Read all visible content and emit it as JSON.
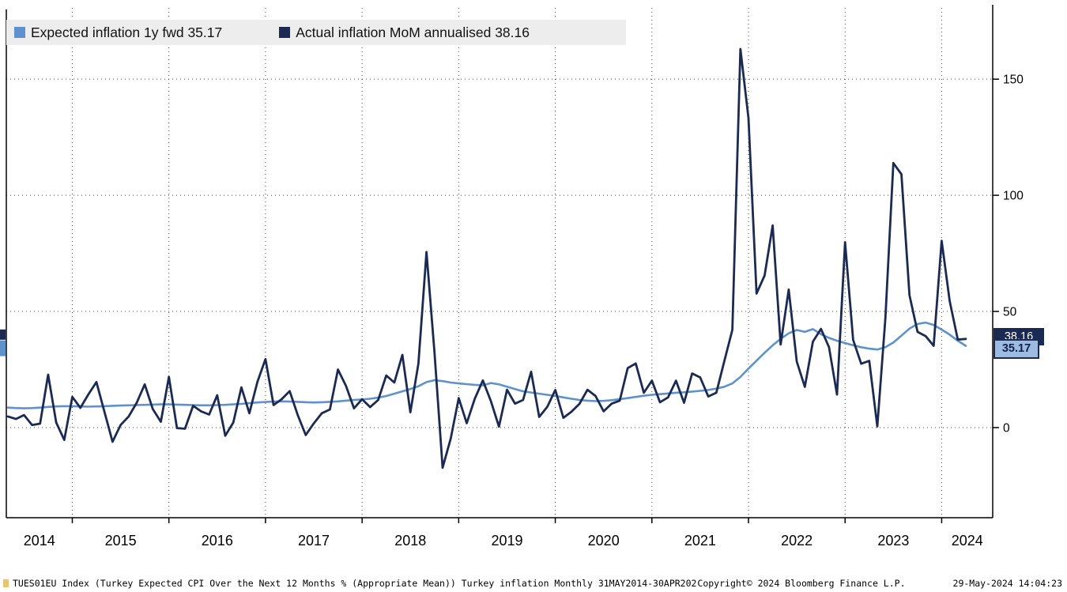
{
  "badges": {
    "actual_value": "38.16",
    "expected_value": "35.17"
  },
  "footer": {
    "left": "TUES01EU Index (Turkey Expected CPI Over the Next 12 Months % (Appropriate Mean)) Turkey inflation  Monthly 31MAY2014-30APR2024",
    "copyright": "Copyright© 2024 Bloomberg Finance L.P.",
    "timestamp": "29-May-2024 14:04:23"
  },
  "chart_data": {
    "type": "line",
    "frequency": "monthly",
    "x_start": "2014-05",
    "x_end": "2024-04",
    "year_labels": [
      "2014",
      "2015",
      "2016",
      "2017",
      "2018",
      "2019",
      "2020",
      "2021",
      "2022",
      "2023",
      "2024"
    ],
    "y_ticks": [
      0,
      50,
      100,
      150
    ],
    "ylim": [
      -38.8,
      180
    ],
    "grid": "dashed",
    "legend_position": "top-left",
    "series": [
      {
        "name": "Expected inflation 1y fwd",
        "legend_label": "Expected inflation 1y fwd 35.17",
        "color": "#5f92cc",
        "last_value": 35.17,
        "values": [
          8.6,
          8.4,
          8.3,
          8.4,
          8.6,
          8.9,
          9.1,
          9.2,
          9.2,
          9.1,
          9.0,
          9.1,
          9.2,
          9.4,
          9.5,
          9.6,
          9.7,
          9.8,
          9.9,
          10.0,
          10.0,
          9.9,
          9.8,
          9.7,
          9.6,
          9.6,
          9.7,
          9.8,
          10.0,
          10.2,
          10.5,
          10.8,
          11.0,
          11.2,
          11.3,
          11.2,
          11.1,
          10.9,
          10.8,
          10.9,
          11.1,
          11.3,
          11.6,
          11.9,
          12.1,
          12.4,
          12.9,
          13.6,
          14.6,
          15.6,
          16.6,
          17.8,
          19.6,
          20.4,
          20.0,
          19.4,
          19.0,
          18.7,
          18.4,
          18.2,
          19.2,
          18.6,
          17.6,
          16.6,
          15.6,
          15.1,
          14.6,
          14.1,
          13.6,
          13.0,
          12.4,
          11.9,
          11.6,
          11.4,
          11.5,
          11.8,
          12.2,
          12.7,
          13.2,
          13.7,
          14.1,
          14.4,
          14.7,
          15.0,
          15.2,
          15.5,
          15.8,
          16.2,
          16.8,
          17.6,
          19.0,
          21.8,
          25.4,
          28.8,
          32.2,
          35.4,
          38.2,
          40.6,
          42.0,
          41.2,
          42.4,
          40.2,
          38.6,
          37.4,
          36.4,
          35.4,
          34.6,
          34.0,
          33.6,
          34.6,
          36.6,
          39.6,
          42.6,
          44.6,
          45.2,
          44.2,
          42.2,
          40.0,
          37.4,
          35.17
        ]
      },
      {
        "name": "Actual inflation MoM annualised",
        "legend_label": "Actual inflation MoM annualised 38.16",
        "color": "#1b2a52",
        "last_value": 38.16,
        "values": [
          4.8,
          3.7,
          5.4,
          1.1,
          1.7,
          22.8,
          2.2,
          -5.3,
          13.2,
          8.5,
          14.3,
          19.6,
          6.7,
          -6.1,
          1.1,
          4.8,
          10.7,
          18.6,
          8.0,
          2.5,
          21.8,
          -0.2,
          -0.5,
          9.4,
          7.0,
          5.6,
          13.9,
          -3.5,
          2.2,
          17.3,
          6.2,
          19.7,
          29.5,
          9.7,
          12.2,
          15.7,
          5.4,
          -3.2,
          1.8,
          6.2,
          7.8,
          25.0,
          17.9,
          8.3,
          12.2,
          8.8,
          11.9,
          22.4,
          19.4,
          31.3,
          6.6,
          27.6,
          75.6,
          32.0,
          -17.3,
          -4.8,
          12.7,
          1.9,
          12.4,
          20.3,
          11.4,
          0.4,
          16.3,
          10.3,
          11.9,
          24.0,
          4.6,
          8.9,
          16.2,
          4.2,
          6.8,
          10.2,
          16.3,
          13.6,
          7.0,
          10.3,
          11.6,
          25.6,
          27.6,
          15.0,
          20.2,
          10.9,
          13.0,
          20.2,
          10.7,
          23.3,
          21.6,
          13.4,
          15.0,
          28.7,
          42.1,
          163.0,
          133.2,
          57.7,
          65.5,
          87.0,
          35.8,
          59.4,
          28.4,
          17.5,
          37.0,
          42.5,
          34.6,
          14.2,
          79.8,
          37.8,
          27.5,
          28.7,
          0.5,
          47.0,
          113.9,
          109.1,
          57.0,
          41.2,
          39.4,
          35.2,
          80.4,
          54.4,
          37.9,
          38.16
        ]
      }
    ]
  }
}
